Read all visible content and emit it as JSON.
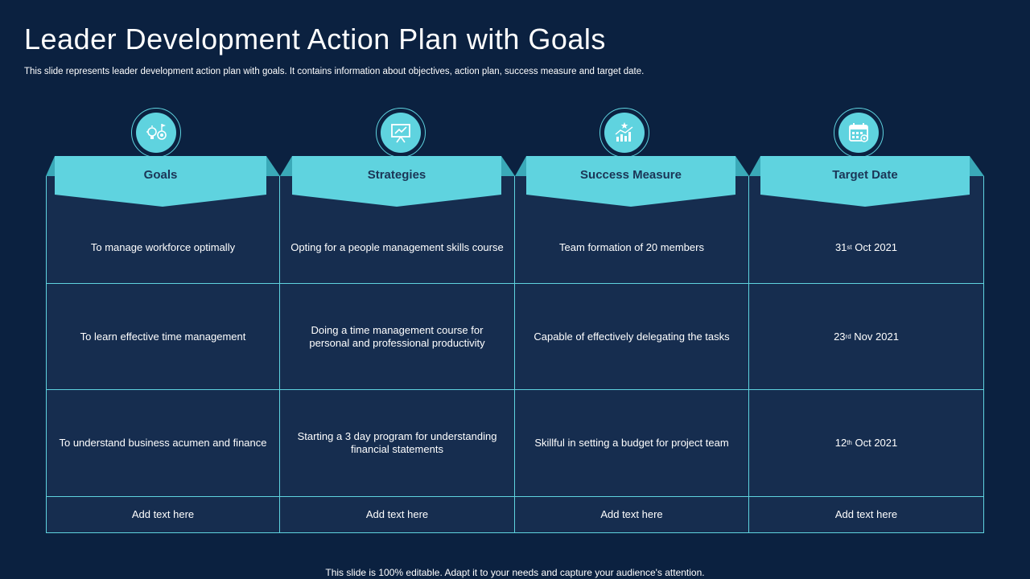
{
  "title": "Leader Development Action Plan with Goals",
  "subtitle": "This slide represents leader development action plan with goals. It contains information about objectives, action plan, success measure and target date.",
  "footer": "This slide is 100% editable. Adapt it to your needs and capture your audience's attention.",
  "colors": {
    "background": "#0b2140",
    "accent": "#5fd3df",
    "cell": "#162d4f",
    "header_text": "#1b3556"
  },
  "columns": [
    {
      "label": "Goals",
      "icon": "idea-target-icon"
    },
    {
      "label": "Strategies",
      "icon": "presentation-board-icon"
    },
    {
      "label": "Success Measure",
      "icon": "growth-chart-star-icon"
    },
    {
      "label": "Target Date",
      "icon": "calendar-icon"
    }
  ],
  "rows": [
    {
      "goal": "To manage workforce optimally",
      "strategy": "Opting for a people management skills course",
      "measure": "Team formation of 20 members",
      "date_day": "31",
      "date_suffix": "st",
      "date_rest": " Oct 2021"
    },
    {
      "goal": "To learn effective time management",
      "strategy": "Doing a time management course for personal and professional productivity",
      "measure": "Capable of effectively delegating the tasks",
      "date_day": "23",
      "date_suffix": "rd",
      "date_rest": " Nov 2021"
    },
    {
      "goal": "To understand business acumen and finance",
      "strategy": "Starting a 3 day program for understanding financial statements",
      "measure": "Skillful in setting a budget for project team",
      "date_day": "12",
      "date_suffix": "th",
      "date_rest": " Oct 2021"
    }
  ],
  "placeholder_row": [
    "Add text here",
    "Add text here",
    "Add text here",
    "Add text here"
  ]
}
